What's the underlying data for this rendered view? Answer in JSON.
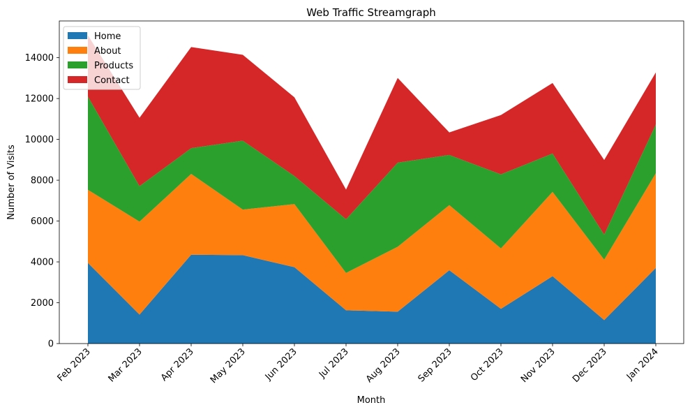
{
  "chart_data": {
    "type": "area",
    "stacked": true,
    "title": "Web Traffic Streamgraph",
    "xlabel": "Month",
    "ylabel": "Number of Visits",
    "categories": [
      "Feb 2023",
      "Mar 2023",
      "Apr 2023",
      "May 2023",
      "Jun 2023",
      "Jul 2023",
      "Aug 2023",
      "Sep 2023",
      "Oct 2023",
      "Nov 2023",
      "Dec 2023",
      "Jan 2024"
    ],
    "ylim": [
      0,
      15800
    ],
    "yticks": [
      0,
      2000,
      4000,
      6000,
      8000,
      10000,
      12000,
      14000
    ],
    "ytick_labels": [
      "0",
      "2000",
      "4000",
      "6000",
      "8000",
      "10000",
      "12000",
      "14000"
    ],
    "legend_position": "upper-left",
    "grid": false,
    "series": [
      {
        "name": "Home",
        "color": "#1f77b4",
        "values": [
          3950,
          1420,
          4350,
          4330,
          3740,
          1630,
          1560,
          3590,
          1700,
          3300,
          1150,
          3700
        ]
      },
      {
        "name": "About",
        "color": "#ff7f0e",
        "values": [
          3580,
          4550,
          3960,
          2230,
          3090,
          1830,
          3180,
          3190,
          2960,
          4130,
          2960,
          4640
        ]
      },
      {
        "name": "Products",
        "color": "#2ca02c",
        "values": [
          4570,
          1740,
          1260,
          3380,
          1380,
          2630,
          4120,
          2460,
          3630,
          1880,
          1230,
          2390
        ]
      },
      {
        "name": "Contact",
        "color": "#d62728",
        "values": [
          3000,
          3350,
          4950,
          4200,
          3850,
          1450,
          4150,
          1100,
          2900,
          3450,
          3650,
          2550
        ]
      }
    ]
  }
}
